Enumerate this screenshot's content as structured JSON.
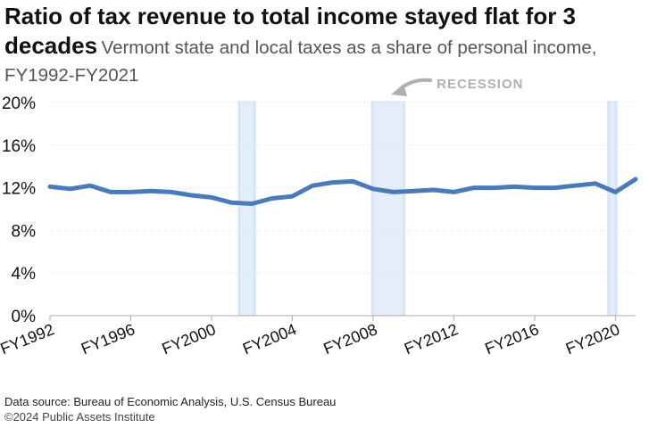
{
  "title": "Ratio of tax revenue to total income stayed flat for 3 decades",
  "subtitle": "Vermont state and local taxes as a share of personal income, FY1992-FY2021",
  "source": "Data source: Bureau of Economic Analysis, U.S. Census Bureau",
  "credit": "©2024 Public Assets Institute",
  "colors": {
    "line": "#4a7ab9",
    "recession": "#d6e6f8",
    "axis": "#aaaaaa",
    "grid": "#d9d9d9",
    "annotation": "#b0b0b0"
  },
  "chart_data": {
    "type": "line",
    "title": "Ratio of tax revenue to total income stayed flat for 3 decades",
    "subtitle": "Vermont state and local taxes as a share of personal income, FY1992-FY2021",
    "xlabel": "",
    "ylabel": "",
    "xlim": [
      1992,
      2021
    ],
    "ylim": [
      0,
      20
    ],
    "y_ticks": [
      0,
      4,
      8,
      12,
      16,
      20
    ],
    "y_tick_labels": [
      "0%",
      "4%",
      "8%",
      "12%",
      "16%",
      "20%"
    ],
    "x_ticks": [
      1992,
      1996,
      2000,
      2004,
      2008,
      2012,
      2016,
      2020
    ],
    "x_tick_labels": [
      "FY1992",
      "FY1996",
      "FY2000",
      "FY2004",
      "FY2008",
      "FY2012",
      "FY2016",
      "FY2020"
    ],
    "grid": true,
    "legend": "none",
    "x": [
      1992,
      1993,
      1994,
      1995,
      1996,
      1997,
      1998,
      1999,
      2000,
      2001,
      2002,
      2003,
      2004,
      2005,
      2006,
      2007,
      2008,
      2009,
      2010,
      2011,
      2012,
      2013,
      2014,
      2015,
      2016,
      2017,
      2018,
      2019,
      2020,
      2021
    ],
    "y": [
      12.1,
      11.9,
      12.2,
      11.6,
      11.6,
      11.7,
      11.6,
      11.3,
      11.1,
      10.6,
      10.5,
      11.0,
      11.2,
      12.2,
      12.5,
      12.6,
      11.9,
      11.6,
      11.7,
      11.8,
      11.6,
      12.0,
      12.0,
      12.1,
      12.0,
      12.0,
      12.2,
      12.4,
      11.6,
      12.8
    ],
    "recessions": [
      [
        2001.3,
        2002.2
      ],
      [
        2007.9,
        2009.6
      ],
      [
        2019.6,
        2020.1
      ]
    ],
    "annotation": "RECESSION"
  }
}
